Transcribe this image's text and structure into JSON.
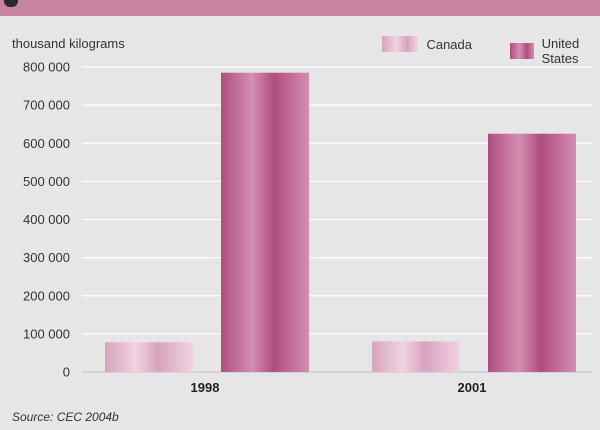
{
  "chart_data": {
    "type": "bar",
    "ylabel": "thousand kilograms",
    "categories": [
      "1998",
      "2001"
    ],
    "series": [
      {
        "name": "Canada",
        "values": [
          78000,
          80000
        ],
        "color": "#d8a3bd"
      },
      {
        "name": "United States",
        "values": [
          785000,
          625000
        ],
        "color": "#b04d80"
      }
    ],
    "ylim": [
      0,
      800000
    ],
    "yticks": [
      0,
      100000,
      200000,
      300000,
      400000,
      500000,
      600000,
      700000,
      800000
    ],
    "ytick_labels": [
      "0",
      "100 000",
      "200 000",
      "300 000",
      "400 000",
      "500 000",
      "600 000",
      "700 000",
      "800 000"
    ],
    "grid": true,
    "legend": "top-right",
    "source": "Source: CEC 2004b"
  }
}
